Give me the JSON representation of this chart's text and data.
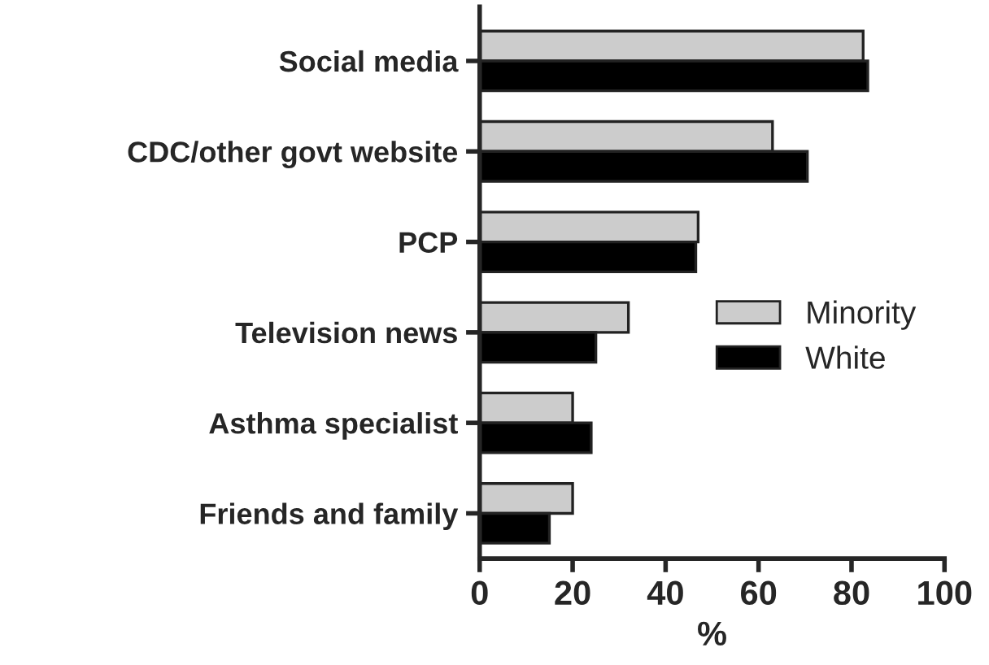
{
  "chart_data": {
    "type": "bar",
    "orientation": "horizontal",
    "xlabel": "%",
    "categories": [
      "Social media",
      "CDC/other govt website",
      "PCP",
      "Television news",
      "Asthma specialist",
      "Friends and family"
    ],
    "series": [
      {
        "name": "Minority",
        "color": "#cccccc",
        "values": [
          82.5,
          63,
          47,
          32,
          20,
          20
        ]
      },
      {
        "name": "White",
        "color": "#000000",
        "values": [
          83.5,
          70.5,
          46.5,
          25,
          24,
          15
        ]
      }
    ],
    "xlim": [
      0,
      100
    ],
    "xticks": [
      0,
      20,
      40,
      60,
      80,
      100
    ],
    "grid": false,
    "legend": "right"
  }
}
